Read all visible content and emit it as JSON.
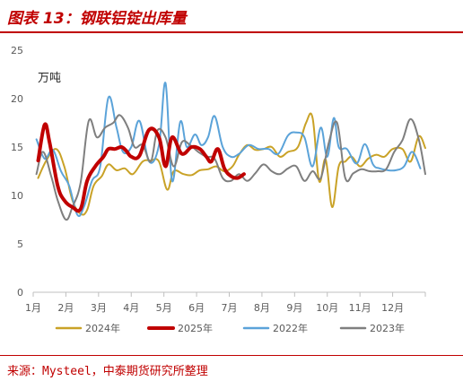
{
  "header": {
    "title": "图表 13：钢联铝锭出库量"
  },
  "footer": {
    "source": "来源：Mysteel，中泰期货研究所整理"
  },
  "chart_data": {
    "type": "line",
    "title": "图表 13：钢联铝锭出库量",
    "unit_label": "万吨",
    "xlabel": "",
    "ylabel": "",
    "ylim": [
      0,
      25
    ],
    "y_ticks": [
      "0",
      "5",
      "10",
      "15",
      "20",
      "25"
    ],
    "x_ticks": [
      "1月",
      "2月",
      "3月",
      "4月",
      "5月",
      "6月",
      "7月",
      "8月",
      "9月",
      "10月",
      "11月",
      "12月"
    ],
    "x_unit": "month (1 = start of January, 13 = end of December)",
    "grid": false,
    "legend_position": "bottom",
    "series": [
      {
        "name": "2024年",
        "color": "#c9a227",
        "width": 2,
        "x": [
          1.15,
          1.4,
          1.7,
          1.95,
          2.2,
          2.45,
          2.65,
          2.85,
          3.1,
          3.3,
          3.55,
          3.8,
          4.05,
          4.35,
          4.6,
          4.85,
          5.1,
          5.3,
          5.6,
          5.85,
          6.1,
          6.35,
          6.6,
          6.85,
          7.1,
          7.3,
          7.55,
          7.8,
          8.05,
          8.3,
          8.55,
          8.8,
          9.1,
          9.35,
          9.55,
          9.75,
          9.95,
          10.15,
          10.35,
          10.55,
          10.75,
          11.0,
          11.25,
          11.5,
          11.75,
          12.0,
          12.3,
          12.55,
          12.8,
          13.0
        ],
        "y": [
          11.8,
          13.6,
          14.8,
          13.0,
          9.5,
          8.1,
          8.5,
          11.0,
          12.0,
          13.2,
          12.6,
          12.8,
          12.2,
          13.5,
          13.6,
          13.5,
          10.6,
          12.5,
          12.2,
          12.1,
          12.6,
          12.7,
          13.0,
          12.5,
          13.0,
          14.2,
          15.2,
          14.7,
          14.8,
          15.0,
          14.0,
          14.5,
          15.0,
          17.5,
          18.0,
          11.5,
          13.7,
          8.8,
          13.0,
          13.5,
          14.0,
          13.0,
          13.8,
          14.2,
          14.0,
          14.8,
          14.8,
          13.5,
          16.1,
          14.9
        ]
      },
      {
        "name": "2025年",
        "color": "#c00000",
        "width": 4,
        "x": [
          1.15,
          1.35,
          1.5,
          1.75,
          1.95,
          2.2,
          2.45,
          2.65,
          2.9,
          3.15,
          3.3,
          3.5,
          3.7,
          3.85,
          4.0,
          4.25,
          4.55,
          4.85,
          5.05,
          5.25,
          5.55,
          5.85,
          6.1,
          6.3,
          6.45,
          6.65,
          6.85,
          7.05,
          7.25,
          7.45
        ],
        "y": [
          13.6,
          17.3,
          15.5,
          11.0,
          9.5,
          8.8,
          8.6,
          11.5,
          13.0,
          14.0,
          14.8,
          14.8,
          15.0,
          14.6,
          14.0,
          14.1,
          16.8,
          16.0,
          13.0,
          16.0,
          14.3,
          15.0,
          14.8,
          14.0,
          13.5,
          14.8,
          12.8,
          12.0,
          11.8,
          12.2
        ]
      },
      {
        "name": "2022年",
        "color": "#5ba3d9",
        "width": 2,
        "x": [
          1.1,
          1.35,
          1.6,
          1.85,
          2.1,
          2.35,
          2.55,
          2.8,
          3.05,
          3.3,
          3.55,
          3.75,
          4.0,
          4.25,
          4.55,
          4.85,
          5.05,
          5.25,
          5.5,
          5.7,
          5.95,
          6.15,
          6.35,
          6.55,
          6.8,
          7.05,
          7.3,
          7.6,
          7.9,
          8.2,
          8.5,
          8.8,
          9.05,
          9.3,
          9.55,
          9.8,
          10.0,
          10.2,
          10.35,
          10.6,
          10.9,
          11.15,
          11.4,
          11.6,
          11.85,
          12.1,
          12.35,
          12.6,
          12.85
        ],
        "y": [
          15.8,
          13.8,
          14.7,
          12.5,
          11.0,
          8.0,
          8.8,
          11.5,
          13.0,
          20.1,
          17.0,
          14.5,
          15.0,
          17.7,
          13.5,
          15.2,
          21.6,
          11.5,
          17.6,
          15.0,
          16.3,
          15.2,
          16.0,
          18.2,
          15.0,
          14.0,
          14.3,
          15.2,
          14.8,
          14.8,
          14.3,
          16.2,
          16.5,
          16.0,
          13.0,
          17.0,
          14.0,
          18.0,
          15.0,
          14.8,
          13.3,
          15.3,
          13.2,
          12.8,
          12.6,
          12.6,
          13.0,
          14.5,
          12.8
        ]
      },
      {
        "name": "2023年",
        "color": "#7f7f7f",
        "width": 2,
        "x": [
          1.1,
          1.3,
          1.55,
          1.75,
          2.0,
          2.2,
          2.45,
          2.7,
          2.95,
          3.2,
          3.45,
          3.65,
          3.9,
          4.1,
          4.35,
          4.6,
          4.8,
          5.05,
          5.3,
          5.55,
          5.8,
          6.05,
          6.3,
          6.55,
          6.8,
          7.05,
          7.3,
          7.55,
          7.8,
          8.05,
          8.3,
          8.55,
          8.8,
          9.05,
          9.3,
          9.55,
          9.8,
          10.05,
          10.3,
          10.55,
          10.8,
          11.05,
          11.3,
          11.55,
          11.8,
          12.05,
          12.3,
          12.55,
          12.8,
          13.0
        ],
        "y": [
          12.2,
          14.5,
          12.0,
          9.5,
          7.5,
          8.8,
          11.3,
          17.7,
          16.0,
          17.0,
          17.5,
          18.3,
          17.0,
          15.0,
          15.2,
          13.5,
          16.7,
          16.0,
          13.0,
          15.5,
          15.2,
          14.5,
          14.0,
          13.8,
          11.8,
          11.5,
          12.2,
          11.5,
          12.3,
          13.2,
          12.5,
          12.2,
          12.8,
          13.0,
          11.5,
          12.5,
          11.8,
          15.5,
          17.5,
          11.8,
          12.3,
          12.7,
          12.5,
          12.5,
          12.7,
          14.5,
          15.7,
          17.9,
          15.8,
          12.2
        ]
      }
    ]
  }
}
